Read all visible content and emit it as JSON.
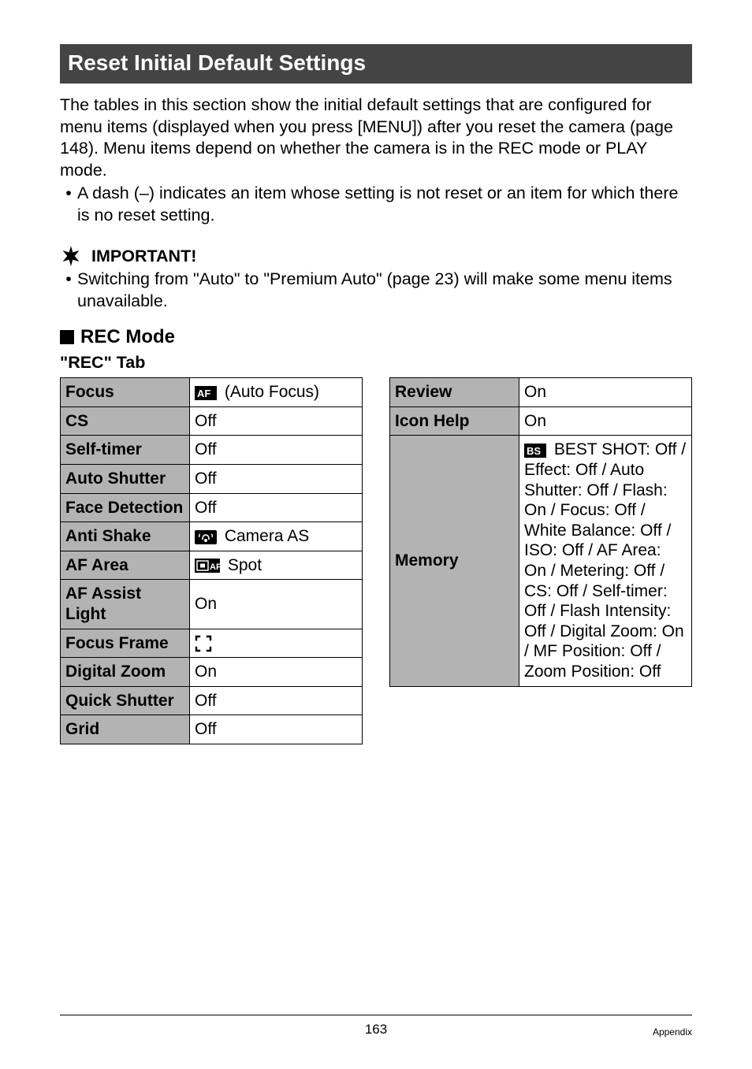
{
  "section_title": "Reset Initial Default Settings",
  "intro_lines": [
    "The tables in this section show the initial default settings that are configured for menu items (displayed when you press [MENU]) after you reset the camera (page 148). Menu items depend on whether the camera is in the REC mode or PLAY mode."
  ],
  "intro_bullet": "A dash (–) indicates an item whose setting is not reset or an item for which there is no reset setting.",
  "important_label": "IMPORTANT!",
  "important_bullet": "Switching from \"Auto\" to \"Premium Auto\" (page 23) will make some menu items unavailable.",
  "mode_heading": "REC Mode",
  "tab_heading": "\"REC\" Tab",
  "left_table": [
    {
      "label": "Focus",
      "value_icon": "af",
      "value_text": "(Auto Focus)"
    },
    {
      "label": "CS",
      "value_text": "Off"
    },
    {
      "label": "Self-timer",
      "value_text": "Off"
    },
    {
      "label": "Auto Shutter",
      "value_text": "Off"
    },
    {
      "label": "Face Detection",
      "value_text": "Off"
    },
    {
      "label": "Anti Shake",
      "value_icon": "antishake",
      "value_text": "Camera AS"
    },
    {
      "label": "AF Area",
      "value_icon": "spot",
      "value_text": "Spot"
    },
    {
      "label": "AF Assist Light",
      "value_text": "On"
    },
    {
      "label": "Focus Frame",
      "value_icon": "focusframe",
      "value_text": ""
    },
    {
      "label": "Digital Zoom",
      "value_text": "On"
    },
    {
      "label": "Quick Shutter",
      "value_text": "Off"
    },
    {
      "label": "Grid",
      "value_text": "Off"
    }
  ],
  "right_table_simple": [
    {
      "label": "Review",
      "value_text": "On"
    },
    {
      "label": "Icon Help",
      "value_text": "On"
    }
  ],
  "memory_label": "Memory",
  "memory_prefix": "BEST SHOT: Off / Effect: Off / Auto Shutter: Off / Flash: On / Focus: Off / White Balance: Off / ISO: Off / AF Area: On / Metering: Off / CS: Off / Self-timer: Off / Flash Intensity: Off / Digital Zoom: On / MF Position: Off / Zoom Position: Off",
  "footer": {
    "page": "163",
    "section": "Appendix"
  },
  "colors": {
    "bar_bg": "#444444",
    "bar_fg": "#ffffff",
    "th_bg": "#b3b3b3",
    "border": "#000000"
  }
}
